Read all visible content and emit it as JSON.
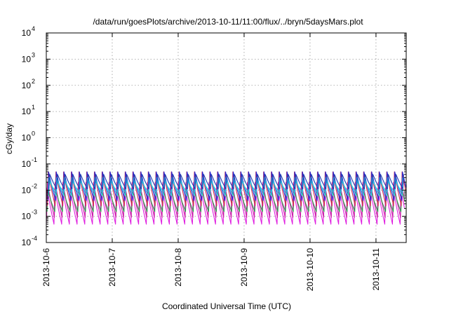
{
  "chart_data": {
    "type": "line",
    "title": "/data/run/goesPlots/archive/2013-10-11/11:00/flux/../bryn/5daysMars.plot",
    "xlabel": "Coordinated Universal Time (UTC)",
    "ylabel": "cGy/day",
    "x_range": [
      "2013-10-06T00:00",
      "2013-10-11T11:00"
    ],
    "x_tick_labels": [
      "2013-10-6",
      "2013-10-7",
      "2013-10-8",
      "2013-10-9",
      "2013-10-10",
      "2013-10-11"
    ],
    "y_scale": "log",
    "ylim": [
      0.0001,
      10000
    ],
    "y_ticks": [
      {
        "base": "10",
        "exp": "-4"
      },
      {
        "base": "10",
        "exp": "-3"
      },
      {
        "base": "10",
        "exp": "-2"
      },
      {
        "base": "10",
        "exp": "-1"
      },
      {
        "base": "10",
        "exp": "0"
      },
      {
        "base": "10",
        "exp": "1"
      },
      {
        "base": "10",
        "exp": "2"
      },
      {
        "base": "10",
        "exp": "3"
      },
      {
        "base": "10",
        "exp": "4"
      }
    ],
    "grid": true,
    "legend": "none",
    "cycle_hours": 2.8,
    "series": [
      {
        "color": "#e020e0",
        "peak": 0.012,
        "trough": 0.0005
      },
      {
        "color": "#cc1fa8",
        "peak": 0.02,
        "trough": 0.0009
      },
      {
        "color": "#2a9a4a",
        "peak": 0.01,
        "trough": 0.0015
      },
      {
        "color": "#d03050",
        "peak": 0.05,
        "trough": 0.0025
      },
      {
        "color": "#2a2ad0",
        "peak": 0.05,
        "trough": 0.004
      },
      {
        "color": "#30d0e8",
        "peak": 0.03,
        "trough": 0.006
      },
      {
        "color": "#20c8d8",
        "peak": 0.022,
        "trough": 0.008
      },
      {
        "color": "#1c3ab0",
        "peak": 0.04,
        "trough": 0.011
      }
    ]
  }
}
